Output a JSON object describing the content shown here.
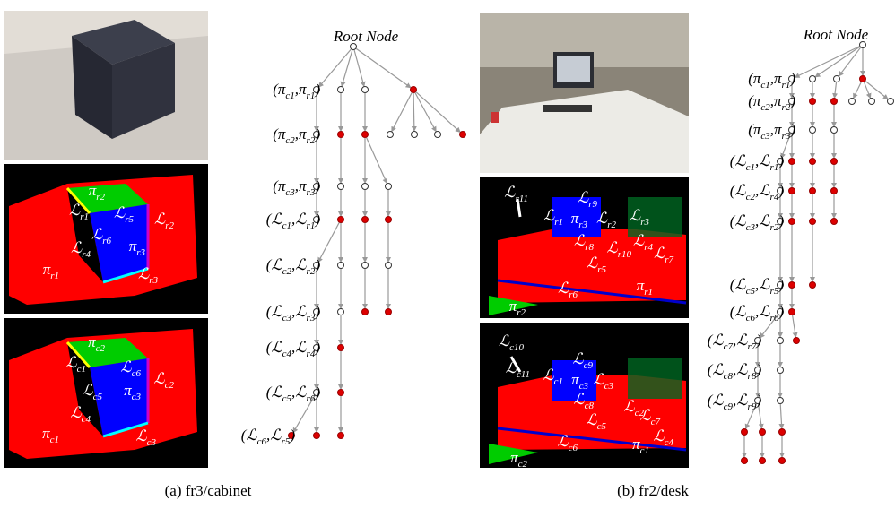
{
  "panels": [
    {
      "caption": "(a)  fr3/cabinet",
      "tree": {
        "root": "Root Node",
        "labels": [
          [
            "(π",
            "c1",
            ",π",
            "r1",
            ")"
          ],
          [
            "(π",
            "c2",
            ",π",
            "r2",
            ")"
          ],
          [
            "(π",
            "c3",
            ",π",
            "r3",
            ")"
          ],
          [
            "(ℒ",
            "c1",
            ",ℒ",
            "r1",
            ")"
          ],
          [
            "(ℒ",
            "c2",
            ",ℒ",
            "r2",
            ")"
          ],
          [
            "(ℒ",
            "c3",
            ",ℒ",
            "r3",
            ")"
          ],
          [
            "(ℒ",
            "c4",
            ",ℒ",
            "r4",
            ")"
          ],
          [
            "(ℒ",
            "c5",
            ",ℒ",
            "r6",
            ")"
          ],
          [
            "(ℒ",
            "c6",
            ",ℒ",
            "r5",
            ")"
          ]
        ]
      },
      "image_labels": [
        [
          [
            "π",
            "r2"
          ],
          [
            "ℒ",
            "r1"
          ],
          [
            "ℒ",
            "r5"
          ],
          [
            "ℒ",
            "r2"
          ],
          [
            "ℒ",
            "r6"
          ],
          [
            "π",
            "r3"
          ],
          [
            "ℒ",
            "r4"
          ],
          [
            "π",
            "r1"
          ],
          [
            "ℒ",
            "r3"
          ]
        ],
        [
          [
            "π",
            "c2"
          ],
          [
            "ℒ",
            "c1"
          ],
          [
            "ℒ",
            "c6"
          ],
          [
            "ℒ",
            "c2"
          ],
          [
            "ℒ",
            "c5"
          ],
          [
            "π",
            "c3"
          ],
          [
            "ℒ",
            "c4"
          ],
          [
            "π",
            "c1"
          ],
          [
            "ℒ",
            "c3"
          ]
        ]
      ]
    },
    {
      "caption": "(b)  fr2/desk",
      "tree": {
        "root": "Root Node",
        "labels": [
          [
            "(π",
            "c1",
            ",π",
            "r1",
            ")"
          ],
          [
            "(π",
            "c2",
            ",π",
            "r2",
            ")"
          ],
          [
            "(π",
            "c3",
            ",π",
            "r3",
            ")"
          ],
          [
            "(ℒ",
            "c1",
            ",ℒ",
            "r1",
            ")"
          ],
          [
            "(ℒ",
            "c2",
            ",ℒ",
            "r4",
            ")"
          ],
          [
            "(ℒ",
            "c3",
            ",ℒ",
            "r2",
            ")"
          ],
          [
            "(ℒ",
            "c5",
            ",ℒ",
            "r5",
            ")"
          ],
          [
            "(ℒ",
            "c6",
            ",ℒ",
            "r6",
            ")"
          ],
          [
            "(ℒ",
            "c7",
            ",ℒ",
            "r7",
            ")"
          ],
          [
            "(ℒ",
            "c8",
            ",ℒ",
            "r8",
            ")"
          ],
          [
            "(ℒ",
            "c9",
            ",ℒ",
            "r9",
            ")"
          ]
        ]
      },
      "image_labels": [
        [
          [
            "ℒ",
            "r11"
          ],
          [
            "ℒ",
            "r9"
          ],
          [
            "ℒ",
            "r1"
          ],
          [
            "π",
            "r3"
          ],
          [
            "ℒ",
            "r2"
          ],
          [
            "ℒ",
            "r3"
          ],
          [
            "ℒ",
            "r8"
          ],
          [
            "ℒ",
            "r10"
          ],
          [
            "ℒ",
            "r4"
          ],
          [
            "ℒ",
            "r7"
          ],
          [
            "ℒ",
            "r5"
          ],
          [
            "π",
            "r1"
          ],
          [
            "ℒ",
            "r6"
          ],
          [
            "π",
            "r2"
          ]
        ],
        [
          [
            "ℒ",
            "c10"
          ],
          [
            "ℒ",
            "c9"
          ],
          [
            "ℒ",
            "c11"
          ],
          [
            "ℒ",
            "c1"
          ],
          [
            "π",
            "c3"
          ],
          [
            "ℒ",
            "c3"
          ],
          [
            "ℒ",
            "c8"
          ],
          [
            "ℒ",
            "c2"
          ],
          [
            "ℒ",
            "c7"
          ],
          [
            "ℒ",
            "c5"
          ],
          [
            "ℒ",
            "c4"
          ],
          [
            "π",
            "c1"
          ],
          [
            "ℒ",
            "c6"
          ],
          [
            "π",
            "c2"
          ]
        ]
      ]
    }
  ]
}
